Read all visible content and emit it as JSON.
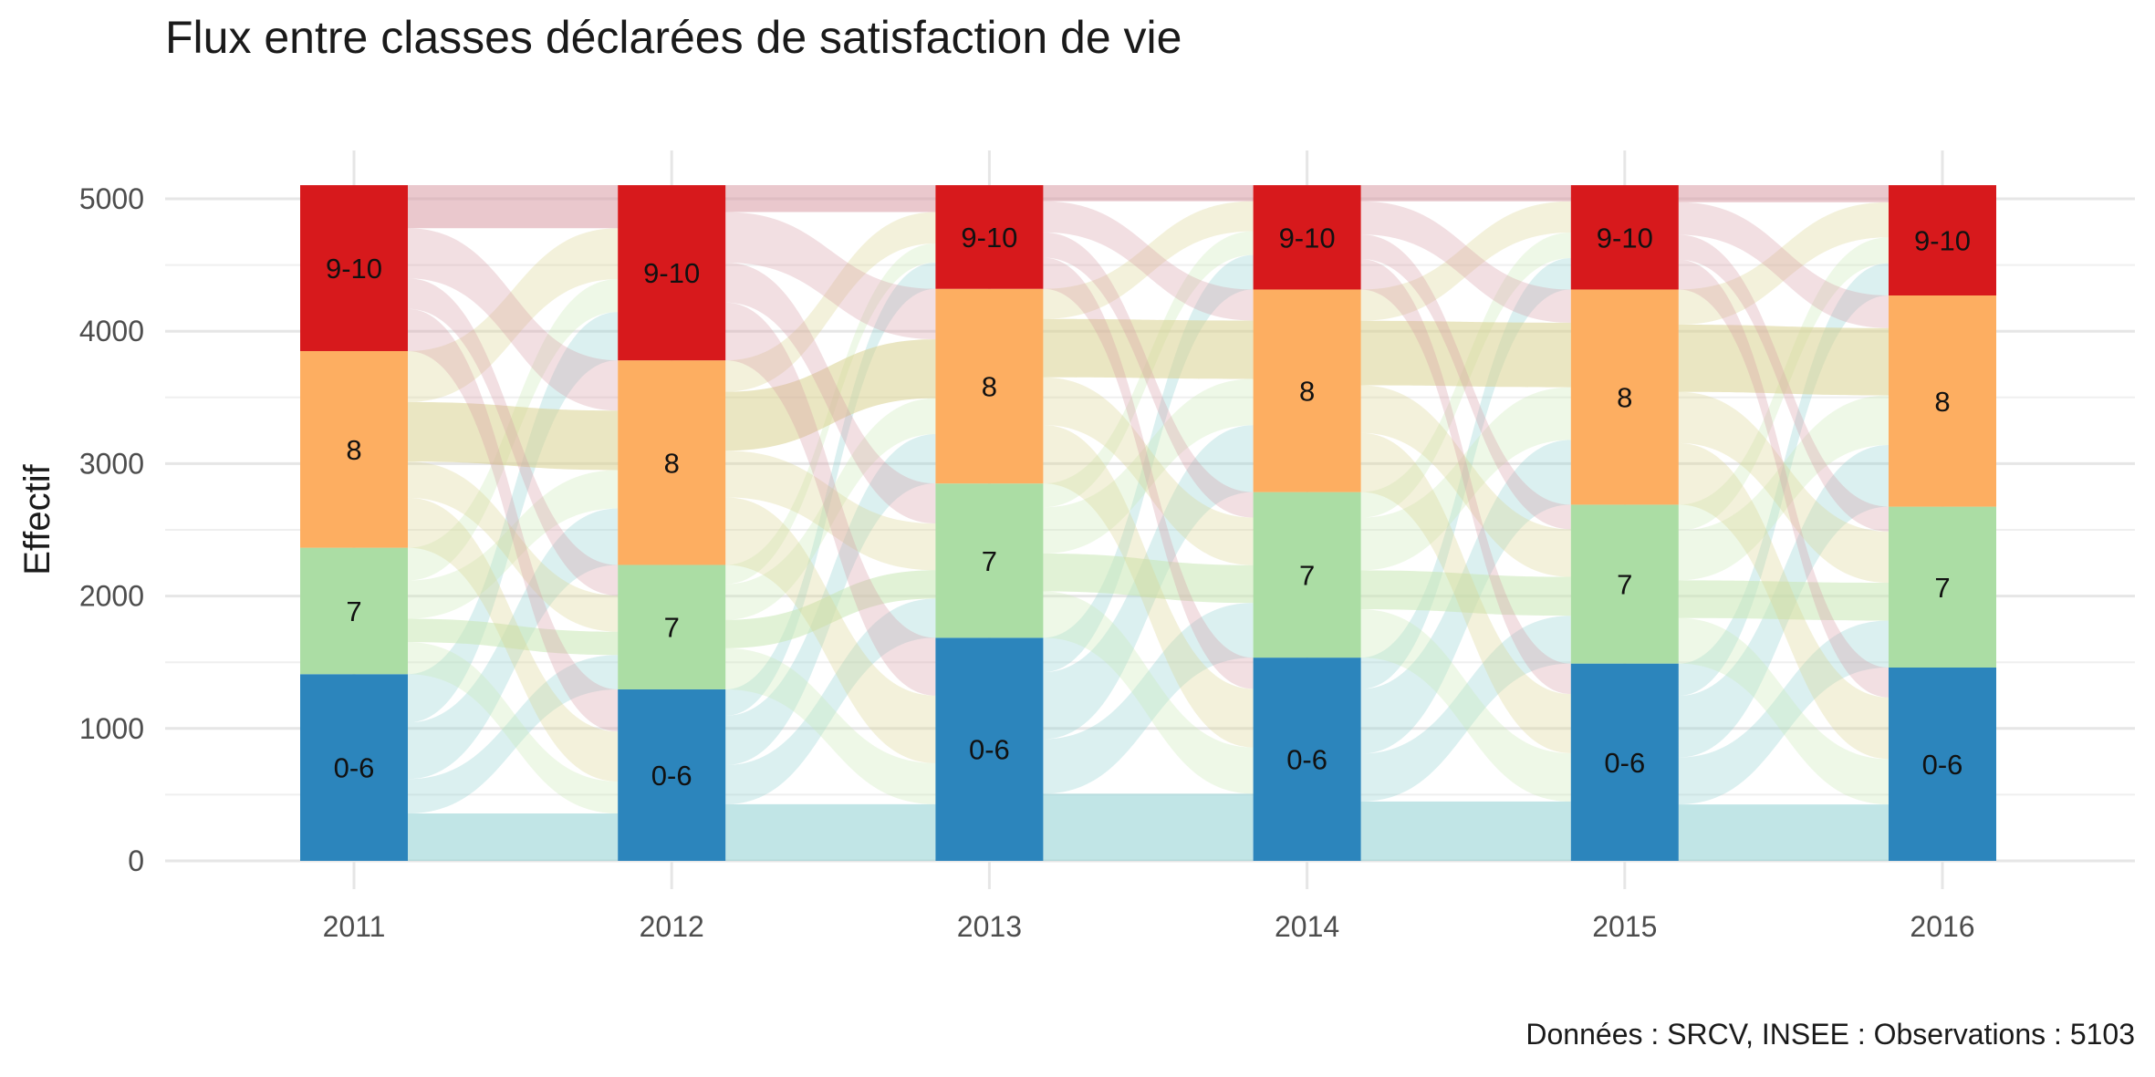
{
  "chart_data": {
    "type": "alluvial",
    "title": "Flux entre classes déclarées de satisfaction de vie",
    "xlabel": "",
    "ylabel": "Effectif",
    "caption": "Données : SRCV, INSEE : Observations :  5103",
    "total": 5103,
    "categories": [
      "2011",
      "2012",
      "2013",
      "2014",
      "2015",
      "2016"
    ],
    "y_ticks": [
      0,
      1000,
      2000,
      3000,
      4000,
      5000
    ],
    "ylim": [
      -200,
      5350
    ],
    "grid": true,
    "legend": "none",
    "strata": [
      "0-6",
      "7",
      "8",
      "9-10"
    ],
    "series": [
      {
        "name": "0-6",
        "color": "#2c85bc",
        "flow_color": "#8ecfd1",
        "values": [
          1410,
          1295,
          1685,
          1535,
          1490,
          1460
        ]
      },
      {
        "name": "7",
        "color": "#abdda4",
        "flow_color": "#c9e8b4",
        "values": [
          955,
          940,
          1165,
          1250,
          1200,
          1215
        ]
      },
      {
        "name": "8",
        "color": "#fdae61",
        "flow_color": "#d9d290",
        "values": [
          1485,
          1545,
          1470,
          1530,
          1625,
          1595
        ]
      },
      {
        "name": "9-10",
        "color": "#d7191c",
        "flow_color": "#d89aa4",
        "values": [
          1253,
          1323,
          783,
          788,
          788,
          833
        ]
      }
    ]
  }
}
